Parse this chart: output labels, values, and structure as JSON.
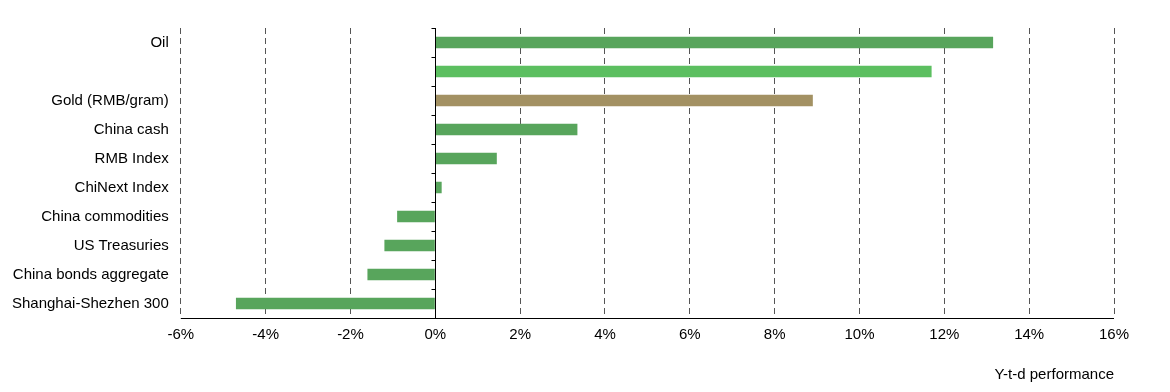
{
  "chart_data": {
    "type": "bar",
    "orientation": "horizontal",
    "categories": [
      "Oil",
      null,
      "Gold (RMB/gram)",
      "China cash",
      "RMB Index",
      "ChiNext Index",
      "China commodities",
      "US Treasuries",
      "China bonds aggregate",
      "Shanghai-Shezhen 300"
    ],
    "values": [
      13.15,
      11.7,
      8.9,
      3.35,
      1.45,
      0.15,
      -0.9,
      -1.2,
      -1.6,
      -4.7
    ],
    "colors": [
      "#58a55c",
      "#5cbf60",
      "#a39163",
      "#58a55c",
      "#58a55c",
      "#58a55c",
      "#58a55c",
      "#58a55c",
      "#58a55c",
      "#58a55c"
    ],
    "xlim": [
      -6,
      16
    ],
    "xticks": [
      {
        "value": -6,
        "label": "-6%"
      },
      {
        "value": -4,
        "label": "-4%"
      },
      {
        "value": -2,
        "label": "-2%"
      },
      {
        "value": 0,
        "label": "0%"
      },
      {
        "value": 2,
        "label": "2%"
      },
      {
        "value": 4,
        "label": "4%"
      },
      {
        "value": 6,
        "label": "6%"
      },
      {
        "value": 8,
        "label": "8%"
      },
      {
        "value": 10,
        "label": "10%"
      },
      {
        "value": 12,
        "label": "12%"
      },
      {
        "value": 14,
        "label": "14%"
      },
      {
        "value": 16,
        "label": "16%"
      }
    ],
    "xlabel": "Y-t-d performance",
    "grid": "x",
    "legend": false
  }
}
